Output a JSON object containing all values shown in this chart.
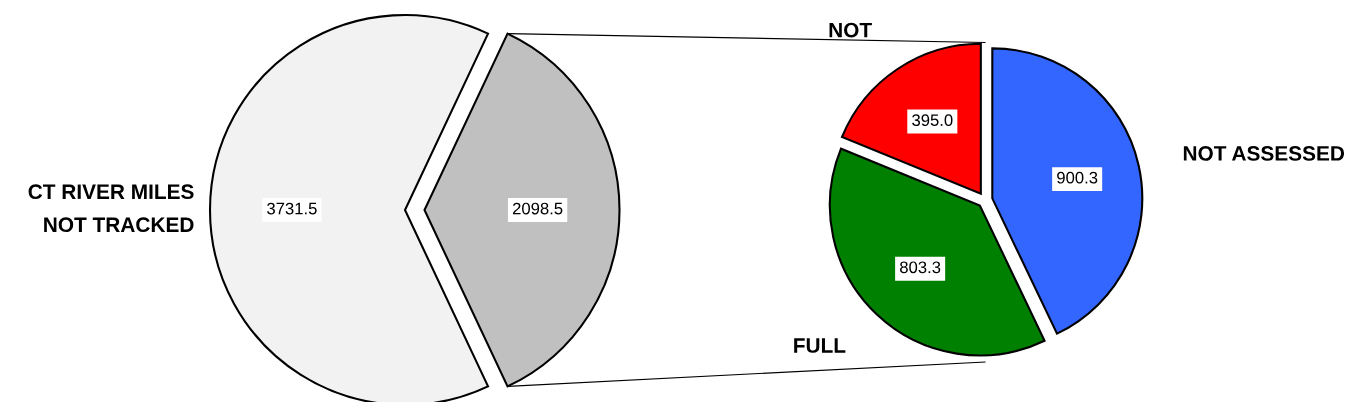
{
  "chart_data": [
    {
      "type": "pie",
      "categories": [
        "CT RIVER MILES\nNOT TRACKED",
        null
      ],
      "values": [
        3731.5,
        2098.5
      ],
      "colors": [
        "#f2f2f2",
        "#c0c0c0"
      ],
      "data_labels": true
    },
    {
      "type": "pie",
      "categories": [
        "NOT",
        "FULL",
        "NOT ASSESSED"
      ],
      "values": [
        395.0,
        803.3,
        900.3
      ],
      "colors": [
        "#ff0000",
        "#008000",
        "#3366ff"
      ],
      "value_labels": [
        "395.0",
        "803.3",
        "900.3"
      ]
    }
  ]
}
